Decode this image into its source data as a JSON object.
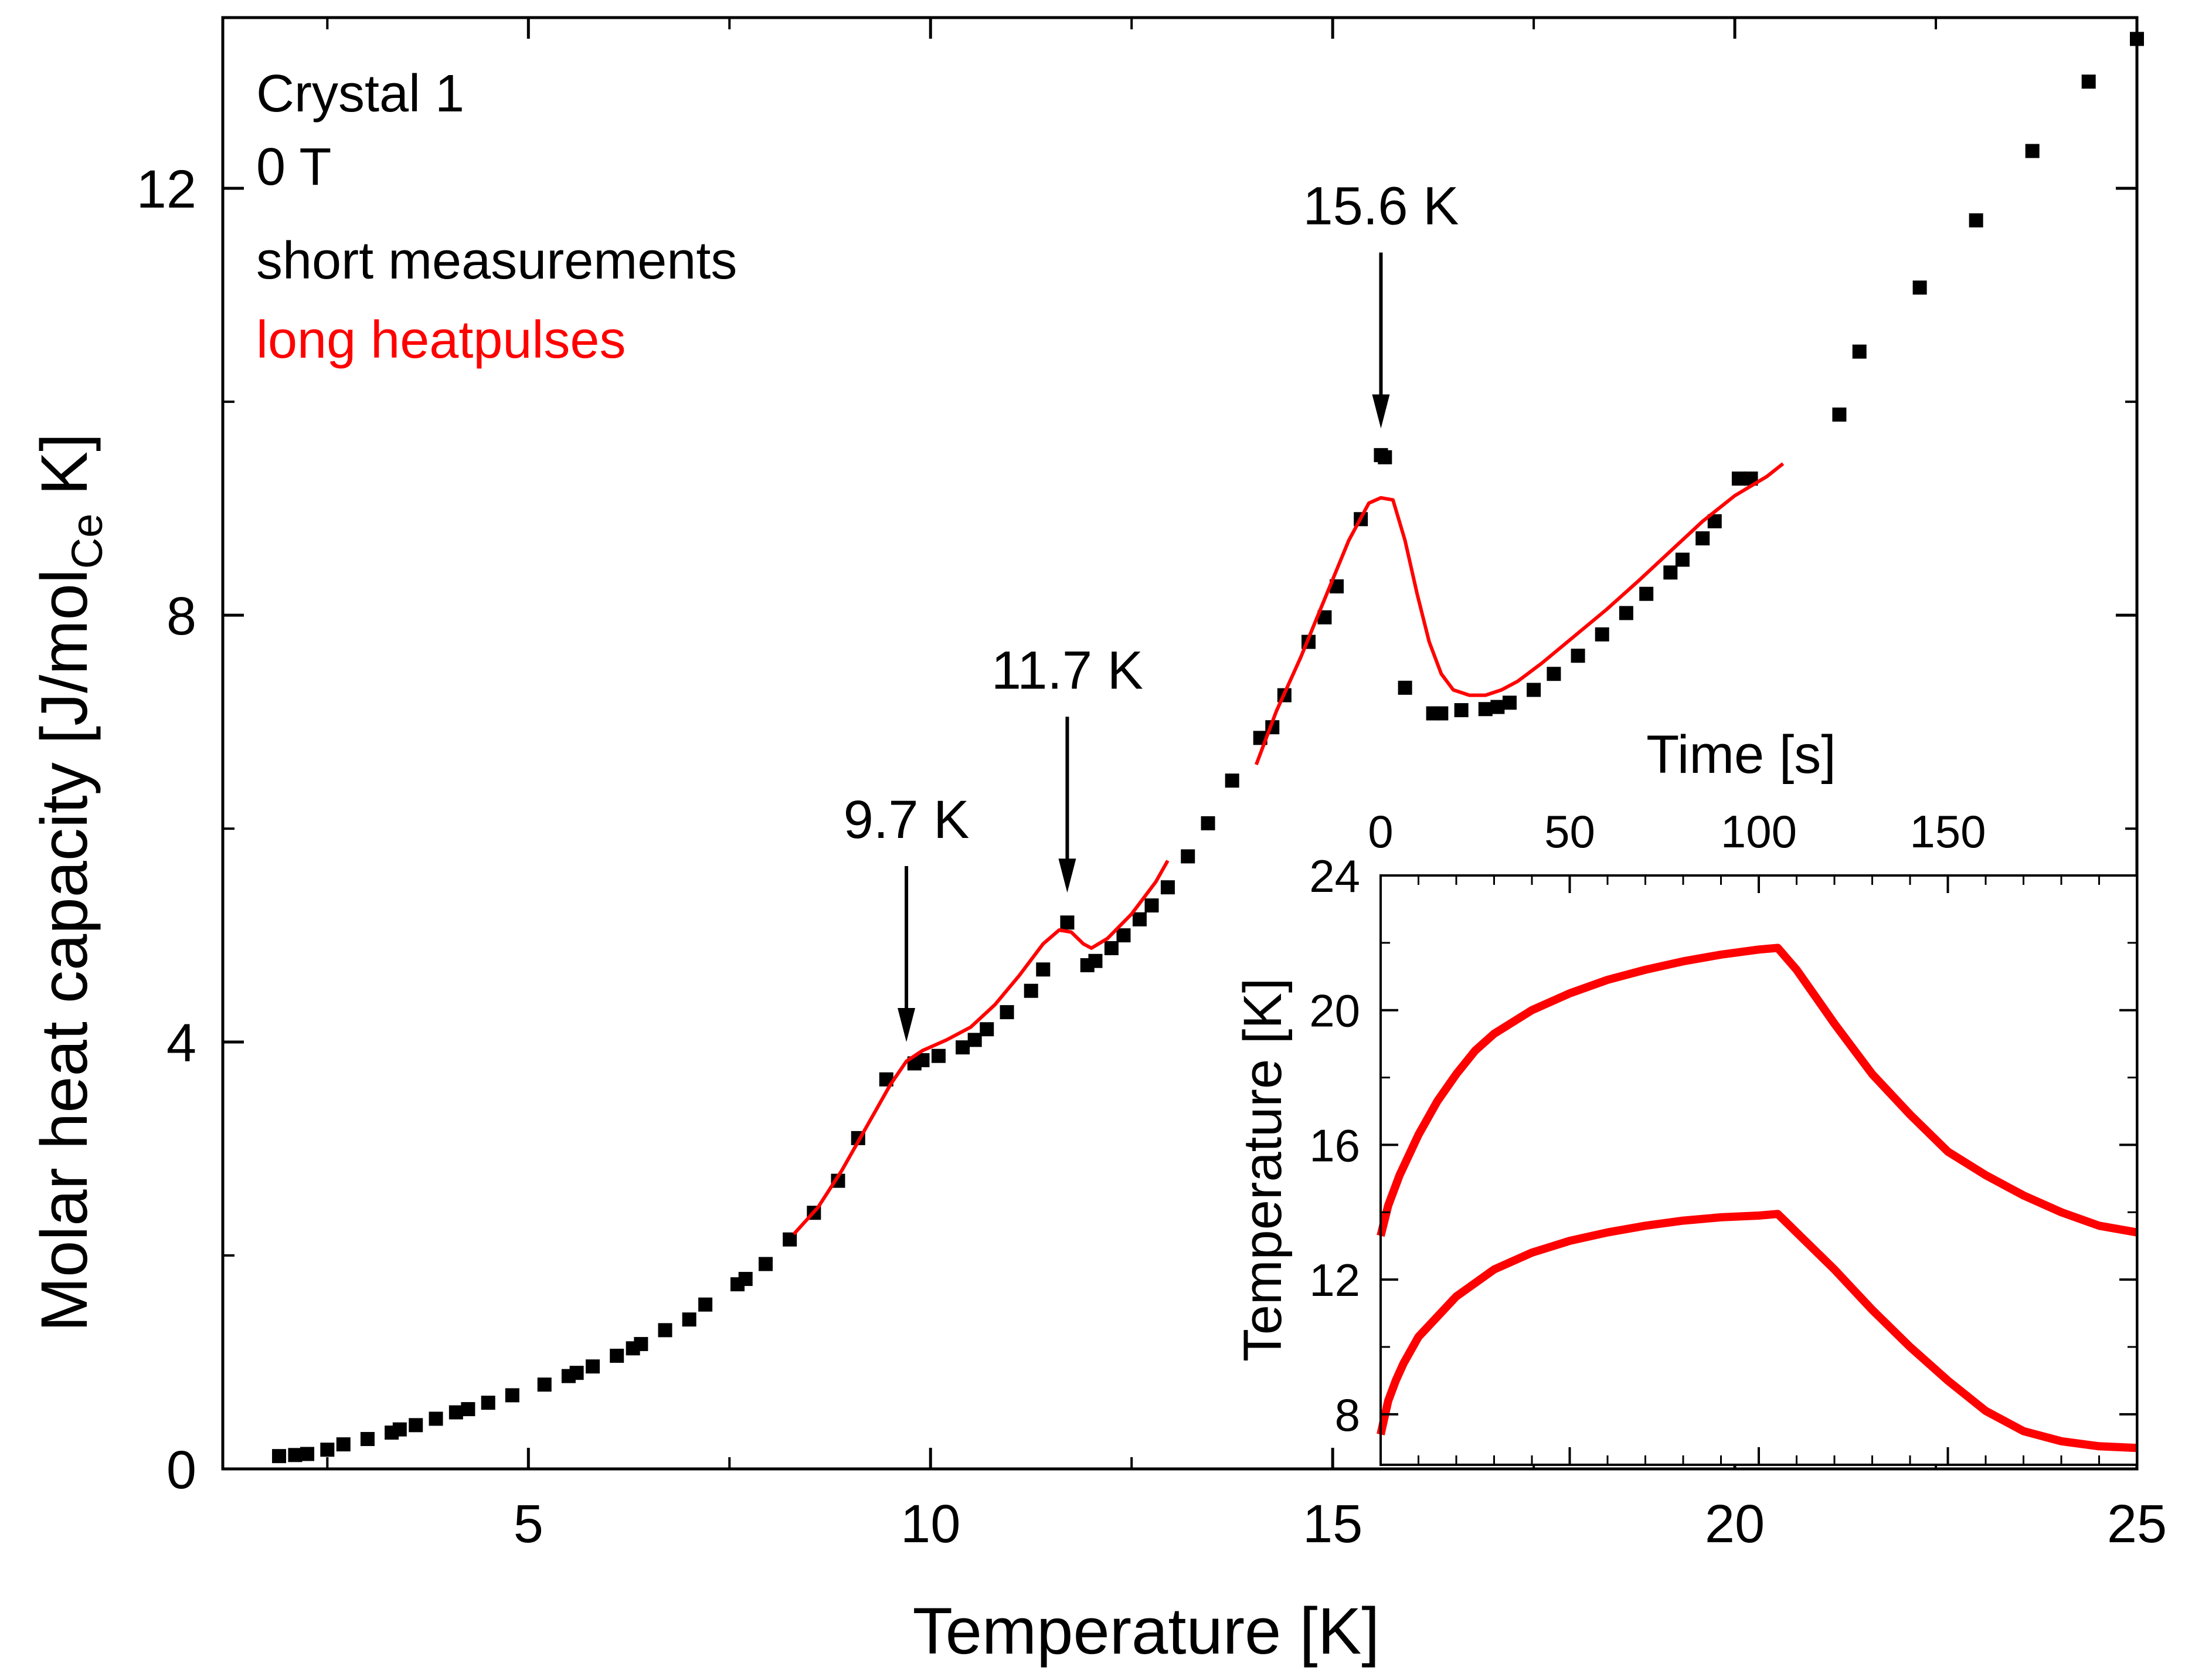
{
  "chart_data": [
    {
      "type": "scatter",
      "xlabel": "Temperature [K]",
      "ylabel_main": "Molar heat capacity [J/mol",
      "ylabel_sub": "Ce",
      "ylabel_end": " K]",
      "xlim": [
        1.2,
        25
      ],
      "ylim": [
        0,
        13.6
      ],
      "xticks": [
        5,
        10,
        15,
        20,
        25
      ],
      "yticks": [
        0,
        4,
        8,
        12
      ],
      "grid": false,
      "colors": {
        "short": "#000000",
        "long": "#ff0000"
      },
      "annotations": {
        "crystal": "Crystal 1",
        "field": "0 T",
        "legend_short": "short measurements",
        "legend_long": "long heatpulses",
        "arrows": [
          {
            "label": "9.7 K",
            "x": 9.7,
            "y": 4.0
          },
          {
            "label": "11.7 K",
            "x": 11.7,
            "y": 5.4
          },
          {
            "label": "15.6 K",
            "x": 15.6,
            "y": 9.75
          }
        ]
      },
      "series": [
        {
          "name": "short measurements",
          "type": "scatter",
          "x": [
            1.9,
            2.1,
            2.25,
            2.5,
            2.7,
            3.0,
            3.3,
            3.4,
            3.6,
            3.85,
            4.1,
            4.25,
            4.5,
            4.8,
            5.2,
            5.5,
            5.6,
            5.8,
            6.1,
            6.3,
            6.4,
            6.7,
            7.0,
            7.2,
            7.6,
            7.7,
            7.95,
            8.25,
            8.55,
            8.85,
            9.1,
            9.45,
            9.8,
            9.9,
            10.1,
            10.4,
            10.55,
            10.7,
            10.95,
            11.25,
            11.4,
            11.7,
            11.95,
            12.05,
            12.25,
            12.4,
            12.6,
            12.75,
            12.95,
            13.2,
            13.45,
            13.75,
            14.1,
            14.25,
            14.4,
            14.7,
            14.9,
            15.05,
            15.35,
            15.6,
            15.65,
            15.9,
            16.25,
            16.35,
            16.6,
            16.9,
            17.05,
            17.2,
            17.5,
            17.75,
            18.05,
            18.35,
            18.65,
            18.9,
            19.2,
            19.35,
            19.6,
            19.75,
            20.05,
            20.2,
            21.3,
            21.55,
            22.3,
            23.0,
            23.7,
            24.4,
            25.0
          ],
          "y": [
            0.12,
            0.13,
            0.14,
            0.18,
            0.23,
            0.28,
            0.34,
            0.37,
            0.41,
            0.47,
            0.53,
            0.56,
            0.62,
            0.69,
            0.79,
            0.87,
            0.9,
            0.96,
            1.06,
            1.13,
            1.17,
            1.3,
            1.4,
            1.54,
            1.73,
            1.78,
            1.92,
            2.15,
            2.4,
            2.7,
            3.1,
            3.65,
            3.8,
            3.83,
            3.87,
            3.95,
            4.02,
            4.12,
            4.28,
            4.48,
            4.68,
            5.12,
            4.72,
            4.76,
            4.88,
            5.0,
            5.15,
            5.28,
            5.45,
            5.74,
            6.05,
            6.45,
            6.85,
            6.95,
            7.25,
            7.75,
            7.98,
            8.27,
            8.9,
            9.5,
            9.48,
            7.32,
            7.08,
            7.08,
            7.11,
            7.12,
            7.14,
            7.18,
            7.3,
            7.45,
            7.62,
            7.82,
            8.02,
            8.2,
            8.4,
            8.52,
            8.72,
            8.88,
            9.28,
            9.28,
            9.88,
            10.47,
            11.07,
            11.7,
            12.35,
            13.0,
            13.4
          ]
        },
        {
          "name": "long heatpulses",
          "type": "line",
          "segments": [
            {
              "x": [
                8.3,
                8.6,
                8.9,
                9.2,
                9.5,
                9.7,
                9.9,
                10.2,
                10.5,
                10.8,
                11.1,
                11.4,
                11.6,
                11.75,
                11.9,
                12.0,
                12.2,
                12.5,
                12.8,
                12.95
              ],
              "y": [
                2.2,
                2.45,
                2.8,
                3.2,
                3.6,
                3.82,
                3.92,
                4.02,
                4.14,
                4.35,
                4.62,
                4.92,
                5.05,
                5.03,
                4.92,
                4.88,
                4.97,
                5.2,
                5.5,
                5.7
              ]
            },
            {
              "x": [
                14.05,
                14.3,
                14.6,
                14.9,
                15.2,
                15.45,
                15.6,
                15.75,
                15.9,
                16.05,
                16.2,
                16.35,
                16.5,
                16.7,
                16.9,
                17.1,
                17.3,
                17.6,
                18.0,
                18.4,
                18.8,
                19.2,
                19.6,
                20.0,
                20.4,
                20.6
              ],
              "y": [
                6.6,
                7.1,
                7.6,
                8.15,
                8.7,
                9.05,
                9.1,
                9.08,
                8.7,
                8.2,
                7.75,
                7.45,
                7.3,
                7.25,
                7.25,
                7.3,
                7.38,
                7.55,
                7.8,
                8.05,
                8.32,
                8.6,
                8.88,
                9.12,
                9.3,
                9.42
              ]
            }
          ]
        }
      ]
    },
    {
      "type": "line",
      "xlabel": "Time [s]",
      "ylabel": "Temperature [K]",
      "xlim": [
        0,
        200
      ],
      "ylim": [
        6.5,
        24
      ],
      "xticks": [
        0,
        50,
        100,
        150
      ],
      "yticks": [
        8,
        12,
        16,
        20,
        24
      ],
      "grid": false,
      "series": [
        {
          "type": "line",
          "x": [
            0,
            2,
            5,
            10,
            15,
            20,
            25,
            30,
            40,
            50,
            60,
            70,
            80,
            90,
            100,
            105,
            110,
            115,
            120,
            130,
            140,
            150,
            160,
            170,
            180,
            190,
            200
          ],
          "y": [
            13.3,
            14.2,
            15.1,
            16.3,
            17.3,
            18.1,
            18.8,
            19.3,
            20.0,
            20.5,
            20.9,
            21.2,
            21.45,
            21.65,
            21.8,
            21.85,
            21.2,
            20.4,
            19.6,
            18.1,
            16.9,
            15.8,
            15.1,
            14.5,
            14.0,
            13.6,
            13.4
          ]
        },
        {
          "type": "line",
          "x": [
            0,
            1,
            2,
            4,
            6,
            8,
            10,
            15,
            20,
            25,
            30,
            40,
            50,
            60,
            70,
            80,
            90,
            100,
            105,
            110,
            120,
            130,
            140,
            150,
            160,
            170,
            180,
            190,
            200
          ],
          "y": [
            7.4,
            7.9,
            8.4,
            9.0,
            9.5,
            9.9,
            10.3,
            10.9,
            11.5,
            11.9,
            12.3,
            12.8,
            13.15,
            13.4,
            13.6,
            13.75,
            13.85,
            13.9,
            13.95,
            13.4,
            12.3,
            11.1,
            10.0,
            9.0,
            8.1,
            7.5,
            7.2,
            7.05,
            7.0
          ]
        }
      ]
    }
  ]
}
